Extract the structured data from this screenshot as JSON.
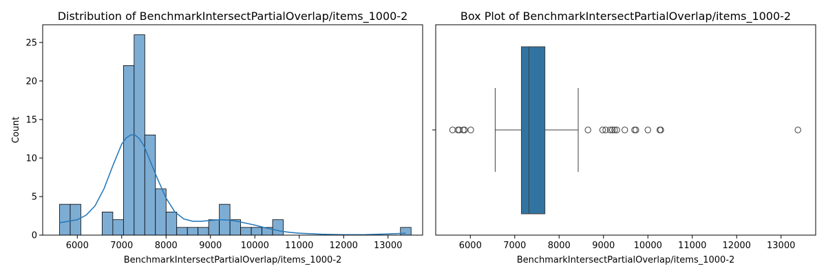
{
  "chart_data": [
    {
      "type": "histogram",
      "title": "Distribution of BenchmarkIntersectPartialOverlap/items_1000-2",
      "xlabel": "BenchmarkIntersectPartialOverlap/items_1000-2",
      "ylabel": "Count",
      "xlim": [
        5220,
        13780
      ],
      "ylim": [
        0,
        27.3
      ],
      "xticks": [
        6000,
        7000,
        8000,
        9000,
        10000,
        11000,
        12000,
        13000
      ],
      "yticks": [
        0,
        5,
        10,
        15,
        20,
        25
      ],
      "bin_start": 5600,
      "bin_width": 240,
      "counts": [
        4,
        4,
        0,
        0,
        3,
        2,
        22,
        26,
        13,
        6,
        3,
        1,
        1,
        1,
        2,
        4,
        2,
        1,
        1,
        1,
        2,
        0,
        0,
        0,
        0,
        0,
        0,
        0,
        0,
        0,
        0,
        0,
        1
      ],
      "kde": {
        "x": [
          5600,
          5800,
          6000,
          6200,
          6400,
          6600,
          6800,
          7000,
          7100,
          7200,
          7300,
          7400,
          7500,
          7600,
          7800,
          8000,
          8200,
          8400,
          8600,
          8800,
          9000,
          9200,
          9400,
          9600,
          9800,
          10000,
          10200,
          10400,
          10600,
          10800,
          11000,
          11500,
          12000,
          12500,
          13000,
          13400
        ],
        "y": [
          1.6,
          1.8,
          2.0,
          2.6,
          3.8,
          6.0,
          9.0,
          11.8,
          12.6,
          13.0,
          13.0,
          12.5,
          11.6,
          10.2,
          7.4,
          4.8,
          3.0,
          2.1,
          1.8,
          1.8,
          1.9,
          2.0,
          1.95,
          1.8,
          1.55,
          1.3,
          1.0,
          0.75,
          0.5,
          0.35,
          0.25,
          0.12,
          0.05,
          0.06,
          0.15,
          0.25
        ]
      },
      "bar_color": "#7eadd4",
      "kde_color": "#2a7ab8"
    },
    {
      "type": "box",
      "title": "Box Plot of BenchmarkIntersectPartialOverlap/items_1000-2",
      "xlabel": "BenchmarkIntersectPartialOverlap/items_1000-2",
      "xlim": [
        5220,
        13780
      ],
      "xticks": [
        6000,
        7000,
        8000,
        9000,
        10000,
        11000,
        12000,
        13000
      ],
      "whisker_low": 6560,
      "q1": 7150,
      "median": 7320,
      "q3": 7680,
      "whisker_high": 8430,
      "outliers": [
        5600,
        5720,
        5750,
        5840,
        5870,
        6010,
        8650,
        8980,
        9050,
        9150,
        9200,
        9250,
        9300,
        9480,
        9700,
        9730,
        10000,
        10270,
        10290,
        13380
      ],
      "box_color": "#3274a1"
    }
  ]
}
